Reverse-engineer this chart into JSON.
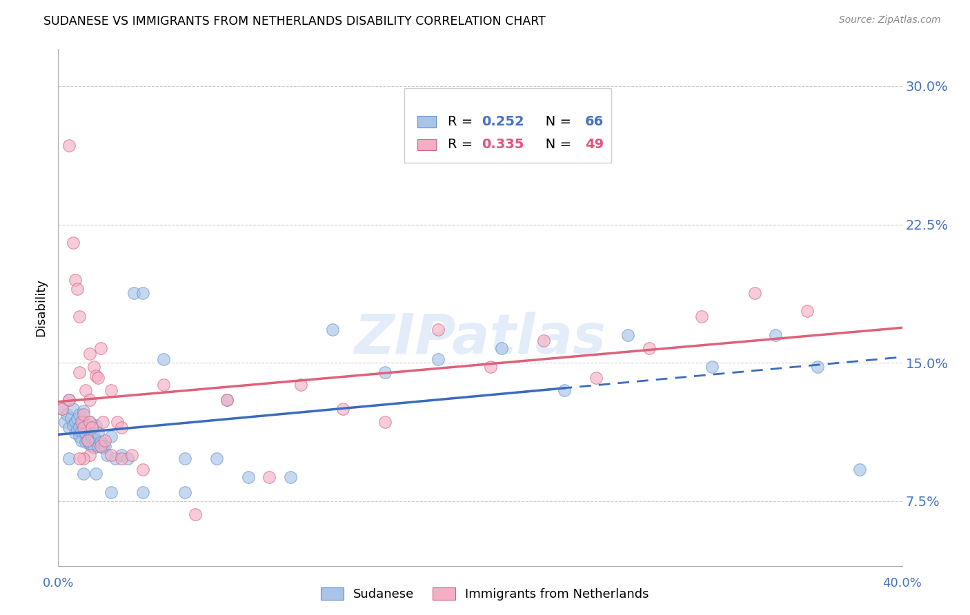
{
  "title": "SUDANESE VS IMMIGRANTS FROM NETHERLANDS DISABILITY CORRELATION CHART",
  "source": "Source: ZipAtlas.com",
  "ylabel": "Disability",
  "xlim": [
    0.0,
    0.4
  ],
  "ylim": [
    0.04,
    0.32
  ],
  "yticks": [
    0.075,
    0.15,
    0.225,
    0.3
  ],
  "ytick_labels": [
    "7.5%",
    "15.0%",
    "22.5%",
    "30.0%"
  ],
  "xticks": [
    0.0,
    0.1,
    0.2,
    0.3,
    0.4
  ],
  "blue_R": 0.252,
  "blue_N": 66,
  "pink_R": 0.335,
  "pink_N": 49,
  "blue_dot_color": "#a8c4e8",
  "pink_dot_color": "#f5afc4",
  "blue_line_color": "#3a6bbf",
  "pink_line_color": "#e0607a",
  "blue_edge_color": "#6090d0",
  "pink_edge_color": "#d06080",
  "ytick_color": "#4472c4",
  "xtick_color": "#4472c4",
  "watermark": "ZIPatlas",
  "legend_blue_text_color": "#4472c4",
  "legend_pink_text_color": "#e05578",
  "blue_x": [
    0.002,
    0.003,
    0.004,
    0.005,
    0.005,
    0.006,
    0.007,
    0.007,
    0.008,
    0.008,
    0.009,
    0.009,
    0.01,
    0.01,
    0.01,
    0.011,
    0.011,
    0.012,
    0.012,
    0.013,
    0.013,
    0.014,
    0.014,
    0.015,
    0.015,
    0.015,
    0.016,
    0.016,
    0.017,
    0.017,
    0.018,
    0.018,
    0.019,
    0.019,
    0.02,
    0.021,
    0.022,
    0.023,
    0.025,
    0.027,
    0.03,
    0.033,
    0.036,
    0.04,
    0.05,
    0.06,
    0.075,
    0.09,
    0.11,
    0.13,
    0.155,
    0.18,
    0.21,
    0.24,
    0.27,
    0.31,
    0.34,
    0.36,
    0.38,
    0.005,
    0.012,
    0.018,
    0.025,
    0.04,
    0.06,
    0.08
  ],
  "blue_y": [
    0.125,
    0.118,
    0.122,
    0.13,
    0.115,
    0.12,
    0.116,
    0.125,
    0.112,
    0.118,
    0.114,
    0.12,
    0.11,
    0.115,
    0.122,
    0.108,
    0.113,
    0.118,
    0.124,
    0.107,
    0.112,
    0.108,
    0.116,
    0.106,
    0.112,
    0.118,
    0.105,
    0.11,
    0.104,
    0.11,
    0.108,
    0.116,
    0.105,
    0.112,
    0.107,
    0.104,
    0.105,
    0.1,
    0.11,
    0.098,
    0.1,
    0.098,
    0.188,
    0.188,
    0.152,
    0.098,
    0.098,
    0.088,
    0.088,
    0.168,
    0.145,
    0.152,
    0.158,
    0.135,
    0.165,
    0.148,
    0.165,
    0.148,
    0.092,
    0.098,
    0.09,
    0.09,
    0.08,
    0.08,
    0.08,
    0.13
  ],
  "pink_x": [
    0.002,
    0.005,
    0.007,
    0.008,
    0.009,
    0.01,
    0.01,
    0.011,
    0.012,
    0.012,
    0.013,
    0.014,
    0.015,
    0.015,
    0.016,
    0.017,
    0.018,
    0.019,
    0.02,
    0.021,
    0.022,
    0.025,
    0.028,
    0.03,
    0.035,
    0.04,
    0.05,
    0.065,
    0.08,
    0.1,
    0.115,
    0.135,
    0.155,
    0.18,
    0.205,
    0.23,
    0.255,
    0.28,
    0.305,
    0.33,
    0.355,
    0.015,
    0.02,
    0.025,
    0.03,
    0.015,
    0.012,
    0.01,
    0.005
  ],
  "pink_y": [
    0.125,
    0.268,
    0.215,
    0.195,
    0.19,
    0.175,
    0.145,
    0.118,
    0.115,
    0.122,
    0.135,
    0.108,
    0.118,
    0.13,
    0.115,
    0.148,
    0.143,
    0.142,
    0.105,
    0.118,
    0.108,
    0.1,
    0.118,
    0.098,
    0.1,
    0.092,
    0.138,
    0.068,
    0.13,
    0.088,
    0.138,
    0.125,
    0.118,
    0.168,
    0.148,
    0.162,
    0.142,
    0.158,
    0.175,
    0.188,
    0.178,
    0.155,
    0.158,
    0.135,
    0.115,
    0.1,
    0.098,
    0.098,
    0.13
  ]
}
